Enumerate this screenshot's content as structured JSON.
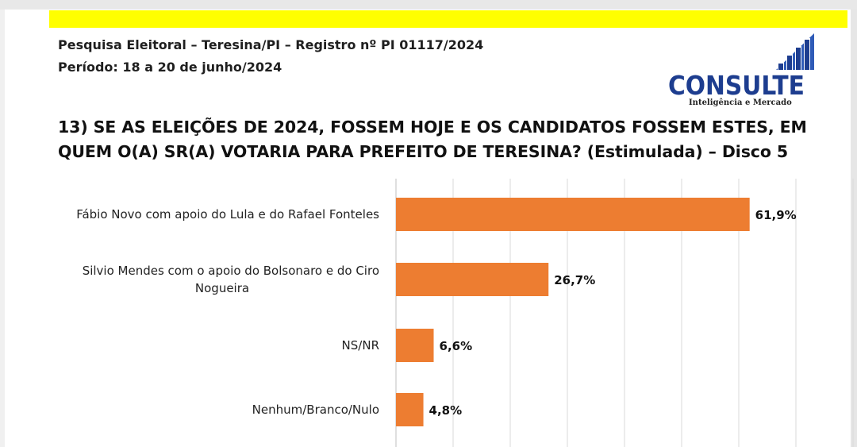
{
  "header": {
    "line1": "Pesquisa Eleitoral – Teresina/PI – Registro nº PI 01117/2024",
    "line2": "Período: 18 a 20 de junho/2024"
  },
  "logo": {
    "name": "CONSULTE",
    "tagline": "Inteligência e Mercado",
    "icon": "bar-steps-icon",
    "color": "#1d3d8f"
  },
  "question": "13) SE AS ELEIÇÕES DE 2024, FOSSEM HOJE E OS CANDIDATOS FOSSEM ESTES, EM QUEM O(A) SR(A) VOTARIA PARA PREFEITO DE TERESINA? (Estimulada) – Disco 5",
  "colors": {
    "bar": "#ed7d31",
    "accent": "#ffff00",
    "grid": "#d9d9d9"
  },
  "chart_data": {
    "type": "bar",
    "orientation": "horizontal",
    "categories": [
      "Fábio Novo com apoio do Lula e do Rafael Fonteles",
      "Silvio Mendes com o apoio do Bolsonaro e do Ciro Nogueira",
      "NS/NR",
      "Nenhum/Branco/Nulo"
    ],
    "values": [
      61.9,
      26.7,
      6.6,
      4.8
    ],
    "data_labels": [
      "61,9%",
      "26,7%",
      "6,6%",
      "4,8%"
    ],
    "xlim": [
      0,
      80
    ],
    "grid": true,
    "legend": "none"
  }
}
